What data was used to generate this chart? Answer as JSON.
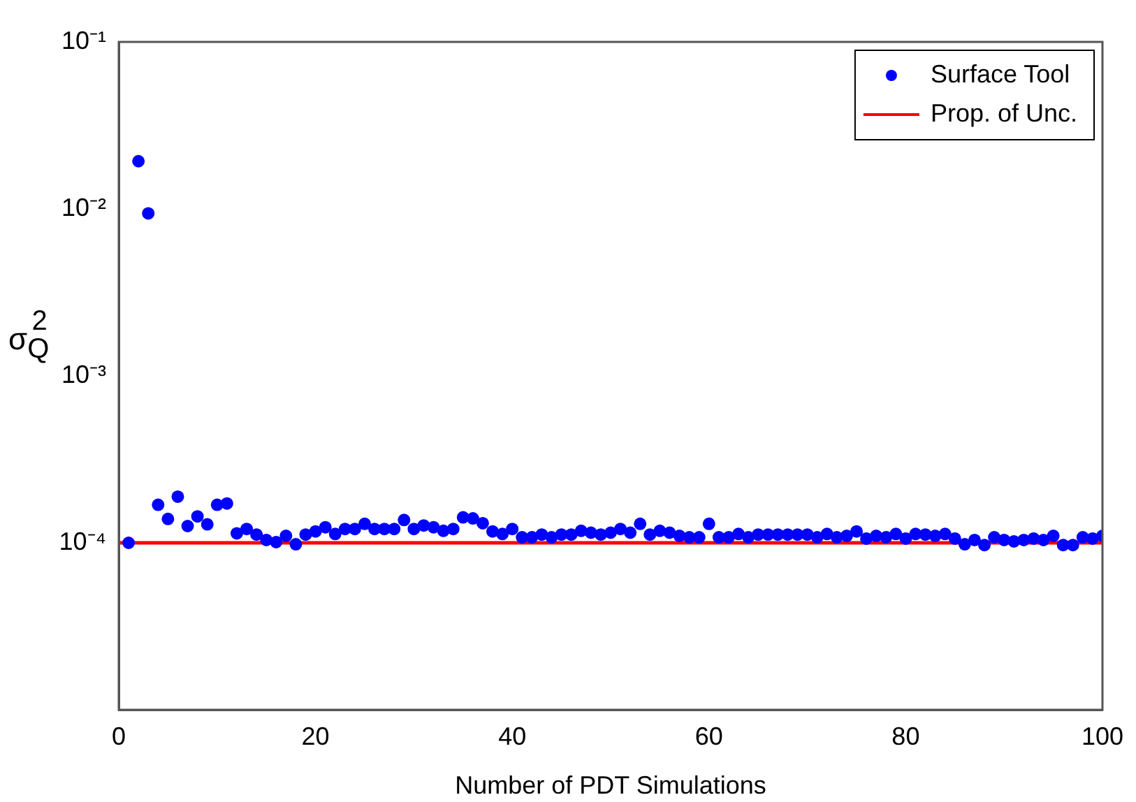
{
  "chart_data": {
    "type": "scatter",
    "xlabel": "Number of PDT Simulations",
    "ylabel": "σ$_{Q}$$^{2}$",
    "xlim": [
      0,
      100
    ],
    "xticks": [
      0,
      20,
      40,
      60,
      80,
      100
    ],
    "ylim": [
      1e-05,
      0.1
    ],
    "yticks": [
      {
        "value": 1e-05,
        "label": null
      },
      {
        "value": 0.0001,
        "label": "10⁻⁴"
      },
      {
        "value": 0.001,
        "label": "10⁻³"
      },
      {
        "value": 0.01,
        "label": "10⁻²"
      },
      {
        "value": 0.1,
        "label": "10⁻¹"
      }
    ],
    "log": "y",
    "grid": false,
    "legend": "top right",
    "series": [
      {
        "name": "Surface Tool",
        "type": "scatter",
        "marker": "circle",
        "color": "#0000ff",
        "x": [
          1,
          2,
          3,
          4,
          5,
          6,
          7,
          8,
          9,
          10,
          11,
          12,
          13,
          14,
          15,
          16,
          17,
          18,
          19,
          20,
          21,
          22,
          23,
          24,
          25,
          26,
          27,
          28,
          29,
          30,
          31,
          32,
          33,
          34,
          35,
          36,
          37,
          38,
          39,
          40,
          41,
          42,
          43,
          44,
          45,
          46,
          47,
          48,
          49,
          50,
          51,
          52,
          53,
          54,
          55,
          56,
          57,
          58,
          59,
          60,
          61,
          62,
          63,
          64,
          65,
          66,
          67,
          68,
          69,
          70,
          71,
          72,
          73,
          74,
          75,
          76,
          77,
          78,
          79,
          80,
          81,
          82,
          83,
          84,
          85,
          86,
          87,
          88,
          89,
          90,
          91,
          92,
          93,
          94,
          95,
          96,
          97,
          98,
          99,
          100
        ],
        "values": [
          0.0001,
          0.0193,
          0.0094,
          0.000169,
          0.000139,
          0.000189,
          0.000126,
          0.000144,
          0.000129,
          0.000169,
          0.000172,
          0.000114,
          0.000121,
          0.000112,
          0.000104,
          0.000101,
          0.00011,
          9.8e-05,
          0.000112,
          0.000117,
          0.000124,
          0.000113,
          0.000121,
          0.000121,
          0.00013,
          0.000121,
          0.000121,
          0.000121,
          0.000137,
          0.000121,
          0.000127,
          0.000124,
          0.000118,
          0.000121,
          0.000142,
          0.00014,
          0.000131,
          0.000117,
          0.000113,
          0.000121,
          0.000108,
          0.000108,
          0.000112,
          0.000108,
          0.000112,
          0.000112,
          0.000118,
          0.000115,
          0.000112,
          0.000115,
          0.000121,
          0.000115,
          0.00013,
          0.000112,
          0.000118,
          0.000115,
          0.00011,
          0.000108,
          0.000108,
          0.00013,
          0.000108,
          0.000108,
          0.000113,
          0.000108,
          0.000112,
          0.000112,
          0.000112,
          0.000112,
          0.000112,
          0.000112,
          0.000108,
          0.000113,
          0.000108,
          0.00011,
          0.000117,
          0.000106,
          0.00011,
          0.000108,
          0.000113,
          0.000106,
          0.000113,
          0.000112,
          0.00011,
          0.000113,
          0.000106,
          9.8e-05,
          0.000104,
          9.7e-05,
          0.000108,
          0.000104,
          0.000102,
          0.000104,
          0.000106,
          0.000104,
          0.00011,
          9.7e-05,
          9.7e-05,
          0.000108,
          0.000106,
          0.00011
        ]
      },
      {
        "name": "Prop. of Unc.",
        "type": "line",
        "marker": "none",
        "line_style": "solid",
        "color": "#ff0000",
        "x": [
          0,
          100
        ],
        "values": [
          0.0001,
          0.0001
        ]
      }
    ]
  }
}
